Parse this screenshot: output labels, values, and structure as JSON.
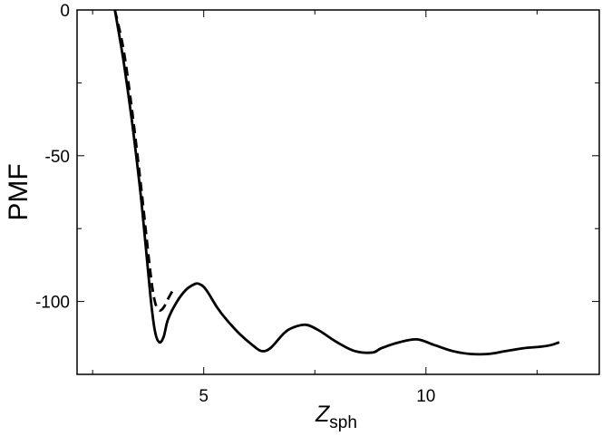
{
  "chart_data": {
    "type": "line",
    "xlabel": "Z",
    "xlabel_sub": "sph",
    "ylabel": "PMF",
    "xlim": [
      2.15,
      13.9
    ],
    "ylim": [
      -125,
      0
    ],
    "xticks": [
      5,
      10
    ],
    "xtick_labels": [
      "5",
      "10"
    ],
    "yticks": [
      0,
      -50,
      -100
    ],
    "ytick_labels": [
      "0",
      "-50",
      "-100"
    ],
    "grid": false,
    "legend": "none",
    "series": [
      {
        "style": "solid",
        "color": "#000000",
        "x": [
          3.0,
          3.2,
          3.4,
          3.6,
          3.8,
          3.9,
          4.0,
          4.1,
          4.2,
          4.4,
          4.6,
          4.8,
          4.9,
          5.0,
          5.1,
          5.3,
          5.5,
          5.8,
          6.1,
          6.3,
          6.5,
          6.8,
          7.0,
          7.3,
          7.6,
          8.0,
          8.4,
          8.8,
          9.0,
          9.4,
          9.8,
          10.2,
          10.6,
          11.0,
          11.4,
          11.8,
          12.2,
          12.6,
          12.8,
          13.0
        ],
        "y": [
          0,
          -18,
          -40,
          -66,
          -98,
          -110,
          -114,
          -112,
          -106,
          -100,
          -96,
          -94,
          -94,
          -95,
          -97,
          -102,
          -106,
          -111,
          -115,
          -117,
          -116,
          -111,
          -109,
          -108,
          -110,
          -114,
          -117,
          -117.5,
          -116,
          -114,
          -113,
          -115,
          -117,
          -118,
          -118,
          -117,
          -116,
          -115.5,
          -115,
          -114
        ]
      },
      {
        "style": "dashed",
        "color": "#000000",
        "x": [
          3.0,
          3.2,
          3.4,
          3.6,
          3.8,
          3.9,
          4.0,
          4.1,
          4.2,
          4.35
        ],
        "y": [
          0,
          -14,
          -36,
          -62,
          -90,
          -100,
          -103,
          -102,
          -99,
          -95
        ]
      }
    ]
  }
}
